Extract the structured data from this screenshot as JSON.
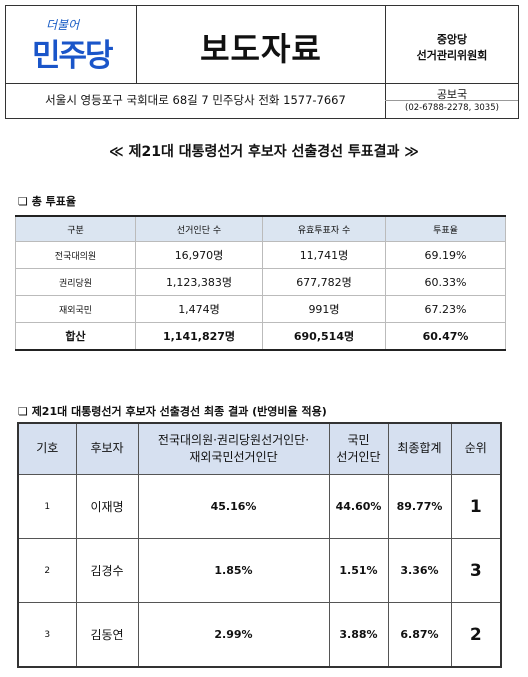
{
  "header": {
    "logo_small": "더불어",
    "logo": "민주당",
    "title": "보도자료",
    "org": [
      "중앙당",
      "선거관리위원회"
    ],
    "address": "서울시 영등포구 국회대로 68길 7 민주당사 전화 1577-7667",
    "dept": "공보국",
    "phone": "(02-6788-2278, 3035)"
  },
  "headline": "≪ 제21대 대통령선거 후보자 선출경선 투표결과 ≫",
  "section1": {
    "heading": "❏ 총 투표율",
    "table": {
      "header": [
        "구분",
        "선거인단 수",
        "유효투표자 수",
        "투표율"
      ],
      "rows": [
        [
          "전국대의원",
          "16,970명",
          "11,741명",
          "69.19%"
        ],
        [
          "권리당원",
          "1,123,383명",
          "677,782명",
          "60.33%"
        ],
        [
          "재외국민",
          "1,474명",
          "991명",
          "67.23%"
        ]
      ],
      "total": [
        "합산",
        "1,141,827명",
        "690,514명",
        "60.47%"
      ]
    }
  },
  "section2": {
    "heading": "❏ 제21대 대통령선거 후보자 선출경선 최종 결과 (반영비율 적용)",
    "table": {
      "header": [
        "기호",
        "후보자",
        [
          "전국대의원·권리당원선거인단·",
          "재외국민선거인단"
        ],
        [
          "국민",
          "선거인단"
        ],
        "최종합계",
        "순위"
      ],
      "rows": [
        [
          "1",
          "이재명",
          "45.16%",
          "44.60%",
          "89.77%",
          "1"
        ],
        [
          "2",
          "김경수",
          "1.85%",
          "1.51%",
          "3.36%",
          "3"
        ],
        [
          "3",
          "김동연",
          "2.99%",
          "3.88%",
          "6.87%",
          "2"
        ]
      ]
    }
  }
}
